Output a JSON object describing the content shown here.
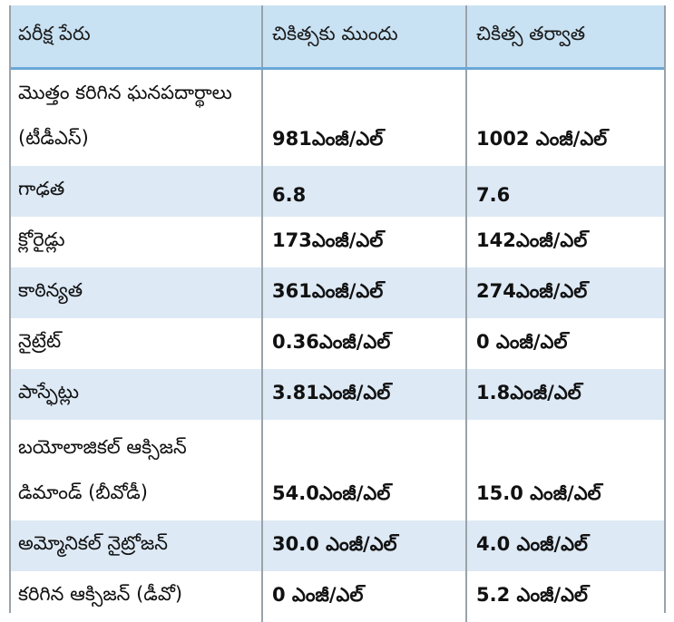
{
  "table": {
    "headers": [
      "పరీక్ష పేరు",
      "చికిత్సకు ముందు",
      "చికిత్స తర్వాత"
    ],
    "rows": [
      {
        "name": "మొత్తం కరిగిన ఘనపదార్థాలు (టీడీఎస్)",
        "before": "981ఎంజీ/ఎల్",
        "after": "1002 ఎంజీ/ఎల్"
      },
      {
        "name": "గాఢత",
        "before": "6.8",
        "after": "7.6"
      },
      {
        "name": "క్లోరైడ్లు",
        "before": "173ఎంజీ/ఎల్",
        "after": "142ఎంజీ/ఎల్"
      },
      {
        "name": "కాఠిన్యత",
        "before": "361ఎంజీ/ఎల్",
        "after": "274ఎంజీ/ఎల్"
      },
      {
        "name": "నైట్రేట్",
        "before": "0.36ఎంజీ/ఎల్",
        "after": "0 ఎంజీ/ఎల్"
      },
      {
        "name": "పాస్ఫేట్లు",
        "before": "3.81ఎంజీ/ఎల్",
        "after": "1.8ఎంజీ/ఎల్"
      },
      {
        "name": "బయోలాజికల్ ఆక్సిజన్ డిమాండ్ (బీవోడీ)",
        "before": "54.0ఎంజీ/ఎల్",
        "after": "15.0 ఎంజీ/ఎల్"
      },
      {
        "name": "అమ్మోనికల్ నైట్రోజన్",
        "before": "30.0 ఎంజీ/ఎల్",
        "after": "4.0 ఎంజీ/ఎల్"
      },
      {
        "name": "కరిగిన ఆక్సిజన్ (డీవో)",
        "before": "0 ఎంజీ/ఎల్",
        "after": "5.2 ఎంజీ/ఎల్"
      }
    ]
  }
}
